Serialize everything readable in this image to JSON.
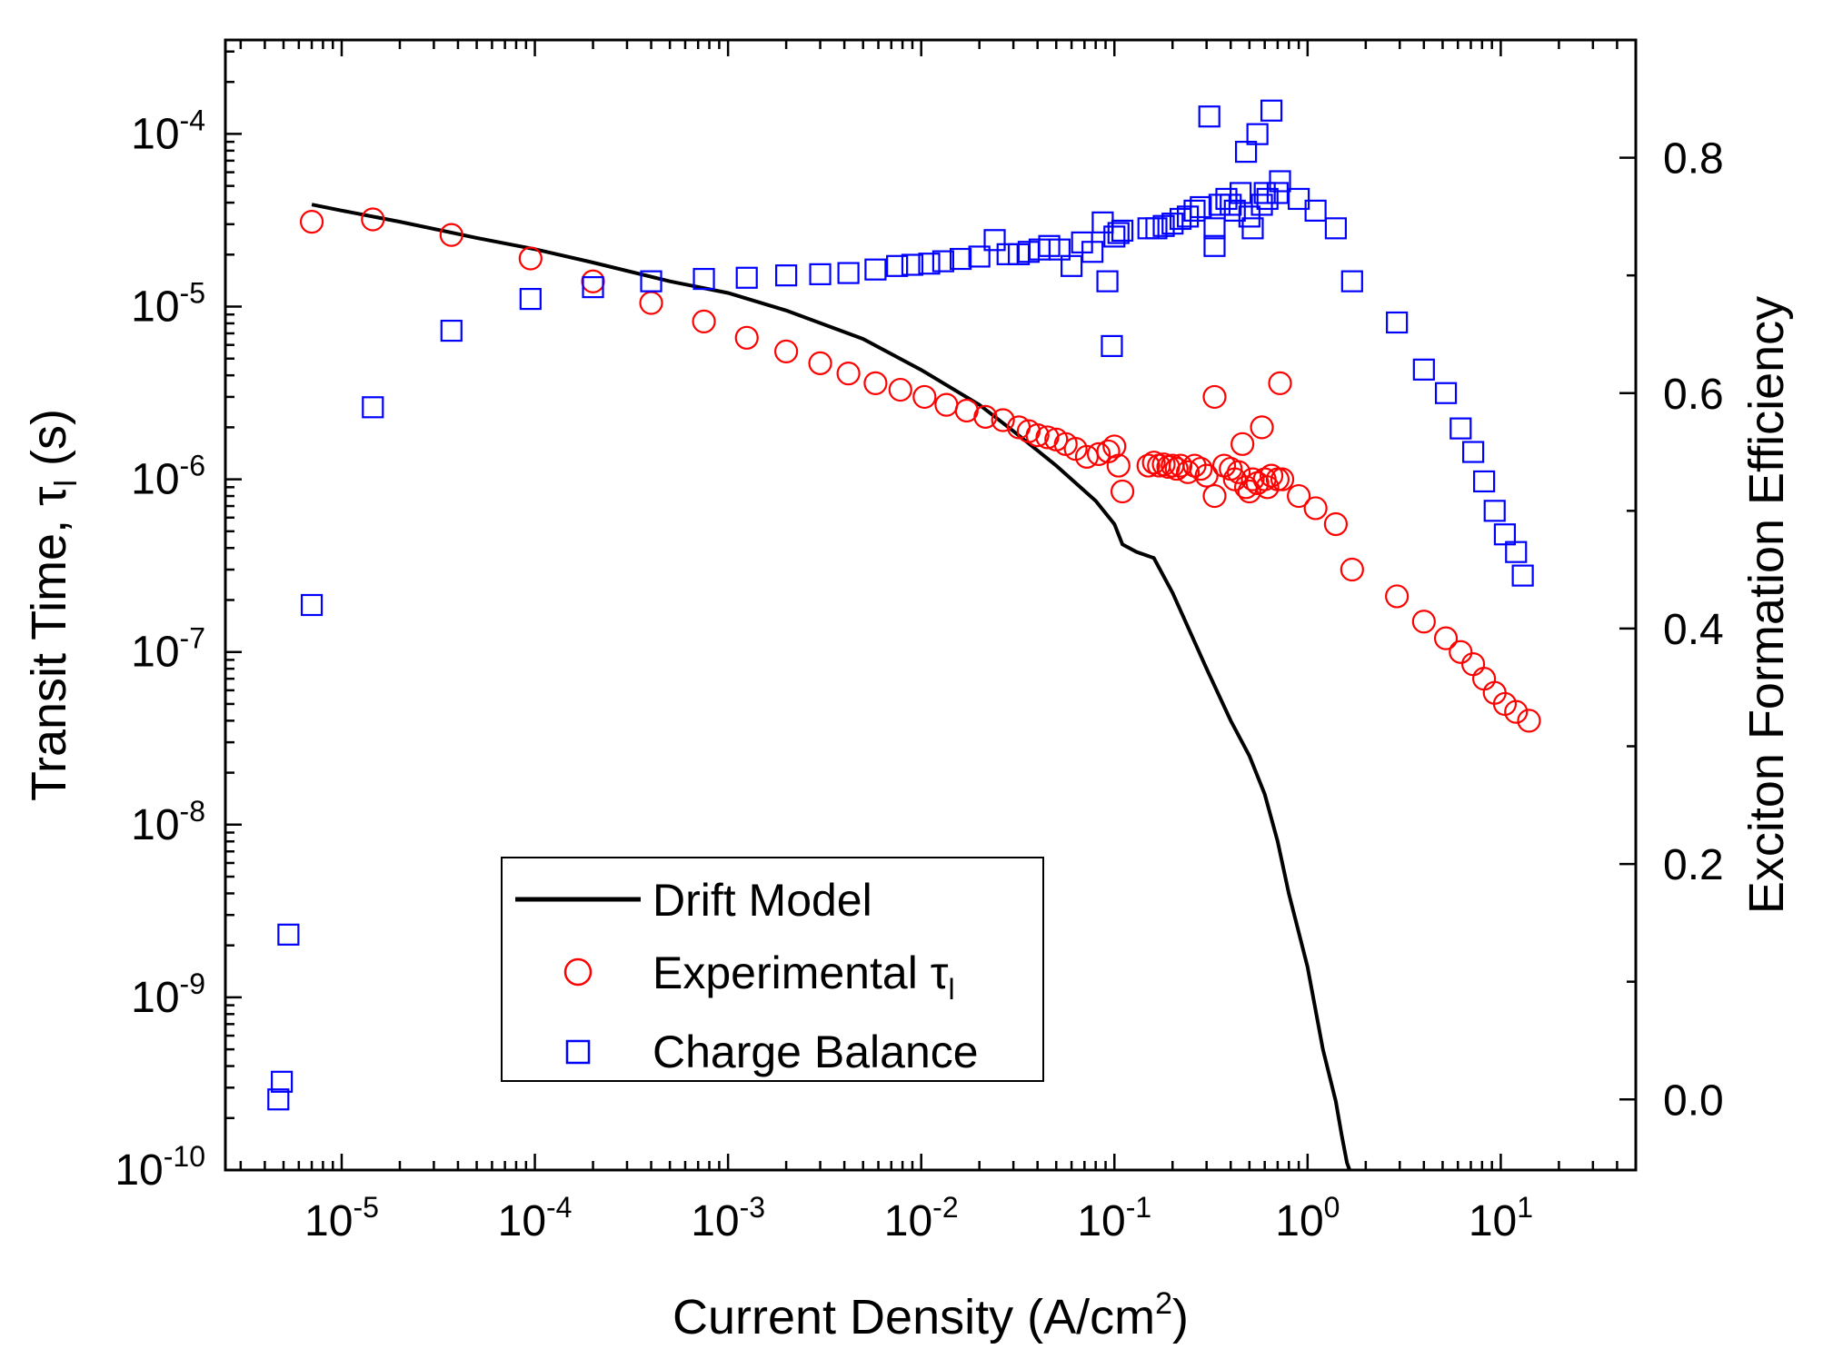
{
  "chart_data": {
    "type": "scatter",
    "xlabel": "Current Density (A/cm",
    "xlabel_sup": "2",
    "xlabel_end": ")",
    "ylabel": "Transit Time, ",
    "ylabel_tau": "τ",
    "ylabel_sub": "l",
    "ylabel_end": " (s)",
    "y2label": "Exciton Formation Efficiency",
    "x_scale": "log",
    "y_scale": "log",
    "xlim": [
      2.5e-06,
      50
    ],
    "ylim": [
      1e-10,
      0.00035
    ],
    "y2lim": [
      -0.06,
      0.9
    ],
    "x_ticks": [
      {
        "base": "10",
        "exp": "-5",
        "value": 1e-05
      },
      {
        "base": "10",
        "exp": "-4",
        "value": 0.0001
      },
      {
        "base": "10",
        "exp": "-3",
        "value": 0.001
      },
      {
        "base": "10",
        "exp": "-2",
        "value": 0.01
      },
      {
        "base": "10",
        "exp": "-1",
        "value": 0.1
      },
      {
        "base": "10",
        "exp": "0",
        "value": 1
      },
      {
        "base": "10",
        "exp": "1",
        "value": 10
      }
    ],
    "y_ticks": [
      {
        "base": "10",
        "exp": "-10",
        "value": 1e-10
      },
      {
        "base": "10",
        "exp": "-9",
        "value": 1e-09
      },
      {
        "base": "10",
        "exp": "-8",
        "value": 1e-08
      },
      {
        "base": "10",
        "exp": "-7",
        "value": 1e-07
      },
      {
        "base": "10",
        "exp": "-6",
        "value": 1e-06
      },
      {
        "base": "10",
        "exp": "-5",
        "value": 1e-05
      },
      {
        "base": "10",
        "exp": "-4",
        "value": 0.0001
      }
    ],
    "y2_ticks": [
      {
        "label": "0.0",
        "value": 0.0
      },
      {
        "label": "0.2",
        "value": 0.2
      },
      {
        "label": "0.4",
        "value": 0.4
      },
      {
        "label": "0.6",
        "value": 0.6
      },
      {
        "label": "0.8",
        "value": 0.8
      }
    ],
    "legend": {
      "placement": "lower-left",
      "entries": [
        {
          "label": "Drift Model",
          "marker": "line"
        },
        {
          "label": "Experimental ",
          "tau": "τ",
          "sub": "l",
          "marker": "circle"
        },
        {
          "label": "Charge Balance",
          "marker": "square"
        }
      ]
    },
    "colors": {
      "drift": "#000000",
      "experimental": "#ff0000",
      "charge": "#0000ff"
    },
    "series": [
      {
        "key": "drift",
        "axis": "left",
        "x": [
          7e-06,
          1e-05,
          2e-05,
          5e-05,
          0.0001,
          0.0002,
          0.0005,
          0.001,
          0.002,
          0.005,
          0.01,
          0.02,
          0.03,
          0.05,
          0.08,
          0.1,
          0.11,
          0.13,
          0.16,
          0.2,
          0.3,
          0.4,
          0.5,
          0.6,
          0.7,
          0.8,
          1.0,
          1.2,
          1.4,
          1.5,
          1.6,
          1.65
        ],
        "y": [
          3.9e-05,
          3.6e-05,
          3.1e-05,
          2.5e-05,
          2.15e-05,
          1.8e-05,
          1.4e-05,
          1.2e-05,
          9.5e-06,
          6.5e-06,
          4.3e-06,
          2.7e-06,
          1.9e-06,
          1.2e-06,
          7.5e-07,
          5.5e-07,
          4.2e-07,
          3.8e-07,
          3.5e-07,
          2.2e-07,
          8e-08,
          4e-08,
          2.5e-08,
          1.5e-08,
          8e-09,
          4e-09,
          1.5e-09,
          5e-10,
          2.5e-10,
          1.6e-10,
          1.1e-10,
          1e-10
        ]
      },
      {
        "key": "experimental",
        "axis": "left",
        "x": [
          7e-06,
          1.45e-05,
          3.7e-05,
          9.5e-05,
          0.0002,
          0.0004,
          0.00075,
          0.00125,
          0.002,
          0.003,
          0.0042,
          0.0058,
          0.0078,
          0.0104,
          0.0135,
          0.0172,
          0.0215,
          0.0265,
          0.032,
          0.036,
          0.04,
          0.045,
          0.05,
          0.056,
          0.063,
          0.072,
          0.083,
          0.093,
          0.1,
          0.105,
          0.11,
          0.15,
          0.16,
          0.17,
          0.18,
          0.19,
          0.2,
          0.21,
          0.22,
          0.24,
          0.26,
          0.28,
          0.3,
          0.33,
          0.33,
          0.37,
          0.4,
          0.42,
          0.44,
          0.46,
          0.48,
          0.5,
          0.52,
          0.55,
          0.58,
          0.6,
          0.62,
          0.65,
          0.7,
          0.72,
          0.74,
          0.9,
          1.1,
          1.4,
          1.7,
          2.9,
          4,
          5.2,
          6.2,
          7.2,
          8.2,
          9.3,
          10.5,
          12,
          14
        ],
        "y": [
          3.1e-05,
          3.2e-05,
          2.6e-05,
          1.9e-05,
          1.4e-05,
          1.05e-05,
          8.2e-06,
          6.6e-06,
          5.5e-06,
          4.7e-06,
          4.1e-06,
          3.6e-06,
          3.3e-06,
          3e-06,
          2.7e-06,
          2.5e-06,
          2.3e-06,
          2.2e-06,
          2e-06,
          1.9e-06,
          1.8e-06,
          1.75e-06,
          1.7e-06,
          1.6e-06,
          1.5e-06,
          1.35e-06,
          1.4e-06,
          1.45e-06,
          1.55e-06,
          1.2e-06,
          8.5e-07,
          1.2e-06,
          1.25e-06,
          1.2e-06,
          1.22e-06,
          1.18e-06,
          1.2e-06,
          1.15e-06,
          1.2e-06,
          1.1e-06,
          1.2e-06,
          1.15e-06,
          1.05e-06,
          8e-07,
          3e-06,
          1.2e-06,
          1.15e-06,
          1e-06,
          1.1e-06,
          1.6e-06,
          9e-07,
          8.5e-07,
          1e-06,
          9.5e-07,
          2e-06,
          1e-06,
          9e-07,
          1.05e-06,
          1e-06,
          3.6e-06,
          1e-06,
          8e-07,
          6.8e-07,
          5.5e-07,
          3e-07,
          2.1e-07,
          1.5e-07,
          1.2e-07,
          1e-07,
          8.5e-08,
          7e-08,
          5.8e-08,
          5e-08,
          4.5e-08,
          4e-08
        ]
      },
      {
        "key": "charge",
        "axis": "right",
        "x": [
          4.7e-06,
          4.9e-06,
          5.3e-06,
          7e-06,
          1.45e-05,
          3.7e-05,
          9.5e-05,
          0.0002,
          0.0004,
          0.00075,
          0.00125,
          0.002,
          0.003,
          0.0042,
          0.0058,
          0.0075,
          0.009,
          0.011,
          0.013,
          0.016,
          0.02,
          0.024,
          0.028,
          0.032,
          0.036,
          0.041,
          0.046,
          0.052,
          0.06,
          0.068,
          0.077,
          0.087,
          0.092,
          0.097,
          0.1,
          0.105,
          0.11,
          0.15,
          0.165,
          0.18,
          0.2,
          0.22,
          0.24,
          0.26,
          0.28,
          0.31,
          0.33,
          0.33,
          0.35,
          0.38,
          0.4,
          0.42,
          0.45,
          0.48,
          0.5,
          0.52,
          0.55,
          0.58,
          0.6,
          0.62,
          0.65,
          0.7,
          0.72,
          0.9,
          1.1,
          1.4,
          1.7,
          2.9,
          4,
          5.2,
          6.2,
          7.2,
          8.2,
          9.3,
          10.5,
          12,
          13
        ],
        "y": [
          0.0,
          0.015,
          0.14,
          0.42,
          0.588,
          0.653,
          0.68,
          0.69,
          0.695,
          0.697,
          0.698,
          0.7,
          0.701,
          0.702,
          0.705,
          0.708,
          0.709,
          0.71,
          0.712,
          0.714,
          0.716,
          0.73,
          0.718,
          0.718,
          0.72,
          0.722,
          0.725,
          0.722,
          0.708,
          0.728,
          0.72,
          0.745,
          0.695,
          0.64,
          0.733,
          0.736,
          0.738,
          0.74,
          0.74,
          0.742,
          0.744,
          0.748,
          0.75,
          0.755,
          0.758,
          0.835,
          0.725,
          0.74,
          0.76,
          0.765,
          0.76,
          0.755,
          0.77,
          0.805,
          0.75,
          0.74,
          0.82,
          0.76,
          0.77,
          0.765,
          0.84,
          0.77,
          0.78,
          0.765,
          0.755,
          0.74,
          0.695,
          0.66,
          0.62,
          0.6,
          0.57,
          0.55,
          0.525,
          0.5,
          0.48,
          0.465,
          0.445
        ]
      }
    ]
  }
}
